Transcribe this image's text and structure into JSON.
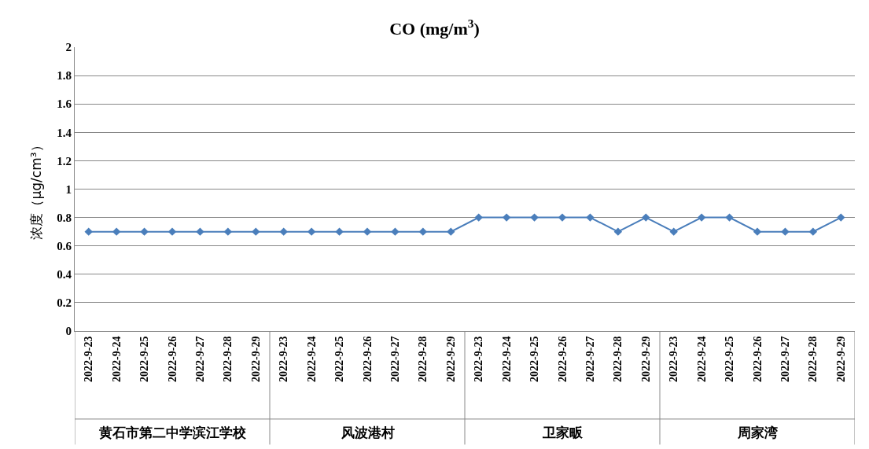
{
  "chart_data": {
    "type": "line",
    "title": "CO (mg/m$^{3}$)",
    "ylabel": "浓度（μg/cm³）",
    "categories": [
      "2022-9-23",
      "2022-9-24",
      "2022-9-25",
      "2022-9-26",
      "2022-9-27",
      "2022-9-28",
      "2022-9-29",
      "2022-9-23",
      "2022-9-24",
      "2022-9-25",
      "2022-9-26",
      "2022-9-27",
      "2022-9-28",
      "2022-9-29",
      "2022-9-23",
      "2022-9-24",
      "2022-9-25",
      "2022-9-26",
      "2022-9-27",
      "2022-9-28",
      "2022-9-29",
      "2022-9-23",
      "2022-9-24",
      "2022-9-25",
      "2022-9-26",
      "2022-9-27",
      "2022-9-28",
      "2022-9-29"
    ],
    "annotations": [
      "黄石市第二中学滨江学校",
      "风波港村",
      "卫家畈",
      "周家湾"
    ],
    "series": [
      {
        "color": "#4a7ebb",
        "values": [
          0.7,
          0.7,
          0.7,
          0.7,
          0.7,
          0.7,
          0.7,
          0.7,
          0.7,
          0.7,
          0.7,
          0.7,
          0.7,
          0.7,
          0.8,
          0.8,
          0.8,
          0.8,
          0.8,
          0.7,
          0.8,
          0.7,
          0.8,
          0.8,
          0.7,
          0.7,
          0.7,
          0.8
        ]
      }
    ],
    "ylim": [
      0,
      2
    ],
    "yticks": [
      0,
      0.2,
      0.4,
      0.6,
      0.8,
      1,
      1.2,
      1.4,
      1.6,
      1.8,
      2
    ],
    "grid": "y",
    "marker": "diamond",
    "line_style": "solid"
  }
}
